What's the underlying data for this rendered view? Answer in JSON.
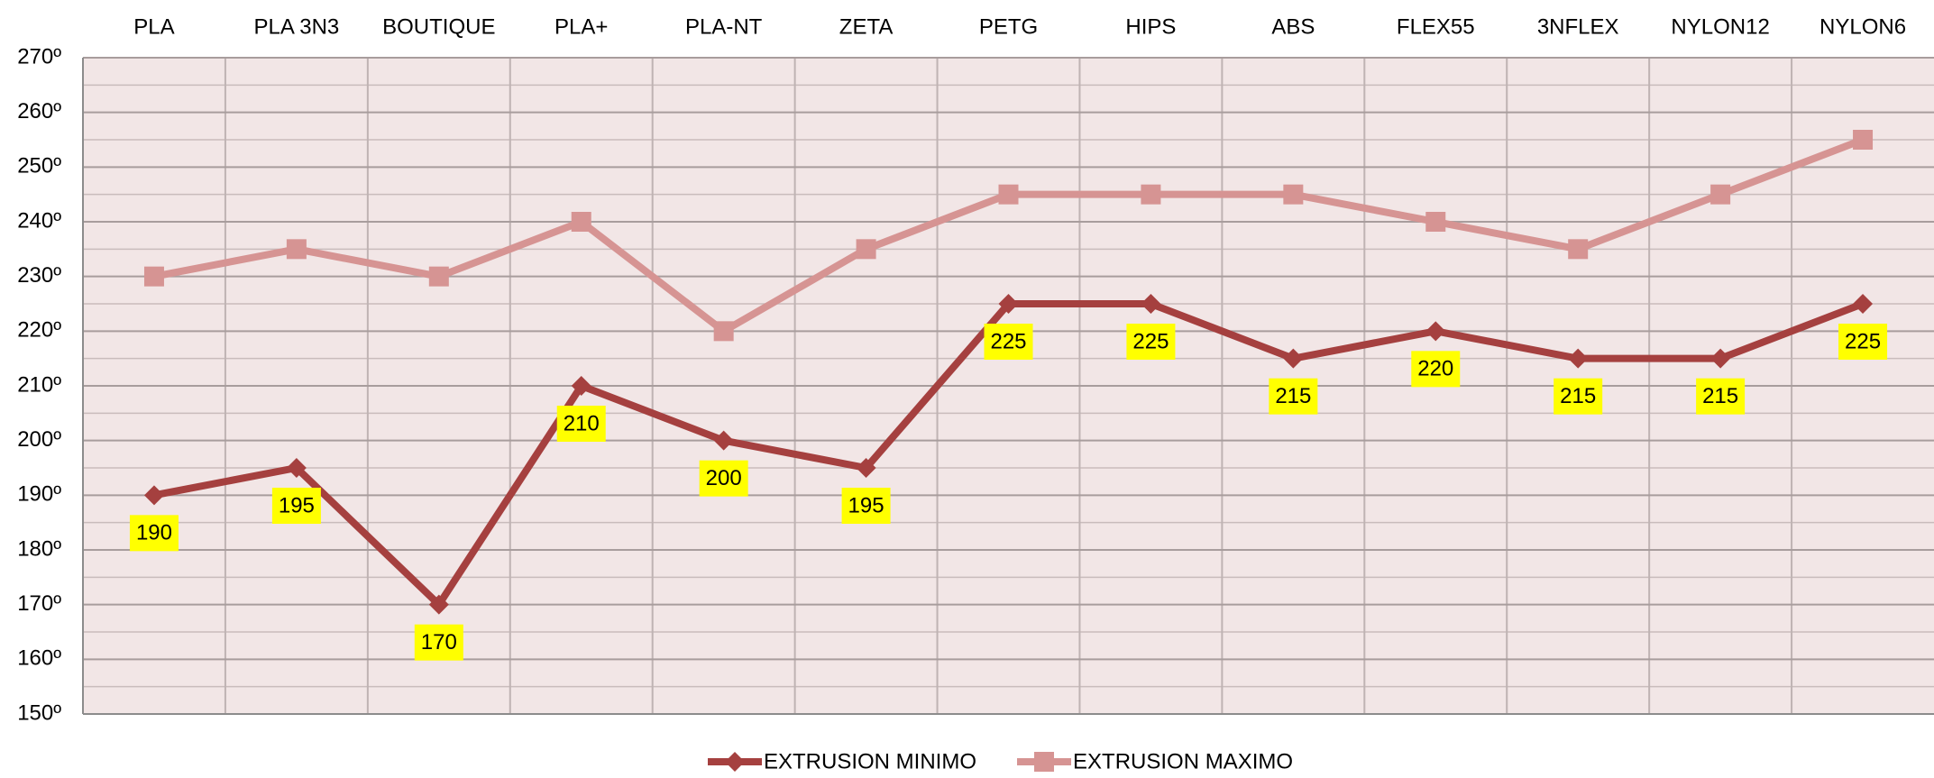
{
  "chart_data": {
    "type": "line",
    "categories": [
      "PLA",
      "PLA 3N3",
      "BOUTIQUE",
      "PLA+",
      "PLA-NT",
      "ZETA",
      "PETG",
      "HIPS",
      "ABS",
      "FLEX55",
      "3NFLEX",
      "NYLON12",
      "NYLON6"
    ],
    "series": [
      {
        "name": "EXTRUSION MINIMO",
        "color": "#a5403f",
        "marker": "diamond",
        "values": [
          190,
          195,
          170,
          210,
          200,
          195,
          225,
          225,
          215,
          220,
          215,
          215,
          225
        ]
      },
      {
        "name": "EXTRUSION MAXIMO",
        "color": "#d69493",
        "marker": "square",
        "values": [
          230,
          235,
          230,
          240,
          220,
          235,
          245,
          245,
          245,
          240,
          235,
          245,
          255
        ]
      }
    ],
    "ylim": [
      150,
      270
    ],
    "yticks": [
      {
        "value": 150,
        "label": "150º"
      },
      {
        "value": 160,
        "label": "160º"
      },
      {
        "value": 170,
        "label": "170º"
      },
      {
        "value": 180,
        "label": "180º"
      },
      {
        "value": 190,
        "label": "190º"
      },
      {
        "value": 200,
        "label": "200º"
      },
      {
        "value": 210,
        "label": "210º"
      },
      {
        "value": 220,
        "label": "220º"
      },
      {
        "value": 230,
        "label": "230º"
      },
      {
        "value": 240,
        "label": "240º"
      },
      {
        "value": 250,
        "label": "250º"
      },
      {
        "value": 260,
        "label": "260º"
      },
      {
        "value": 270,
        "label": "270º"
      }
    ],
    "grid": true,
    "legend": "bottom"
  }
}
